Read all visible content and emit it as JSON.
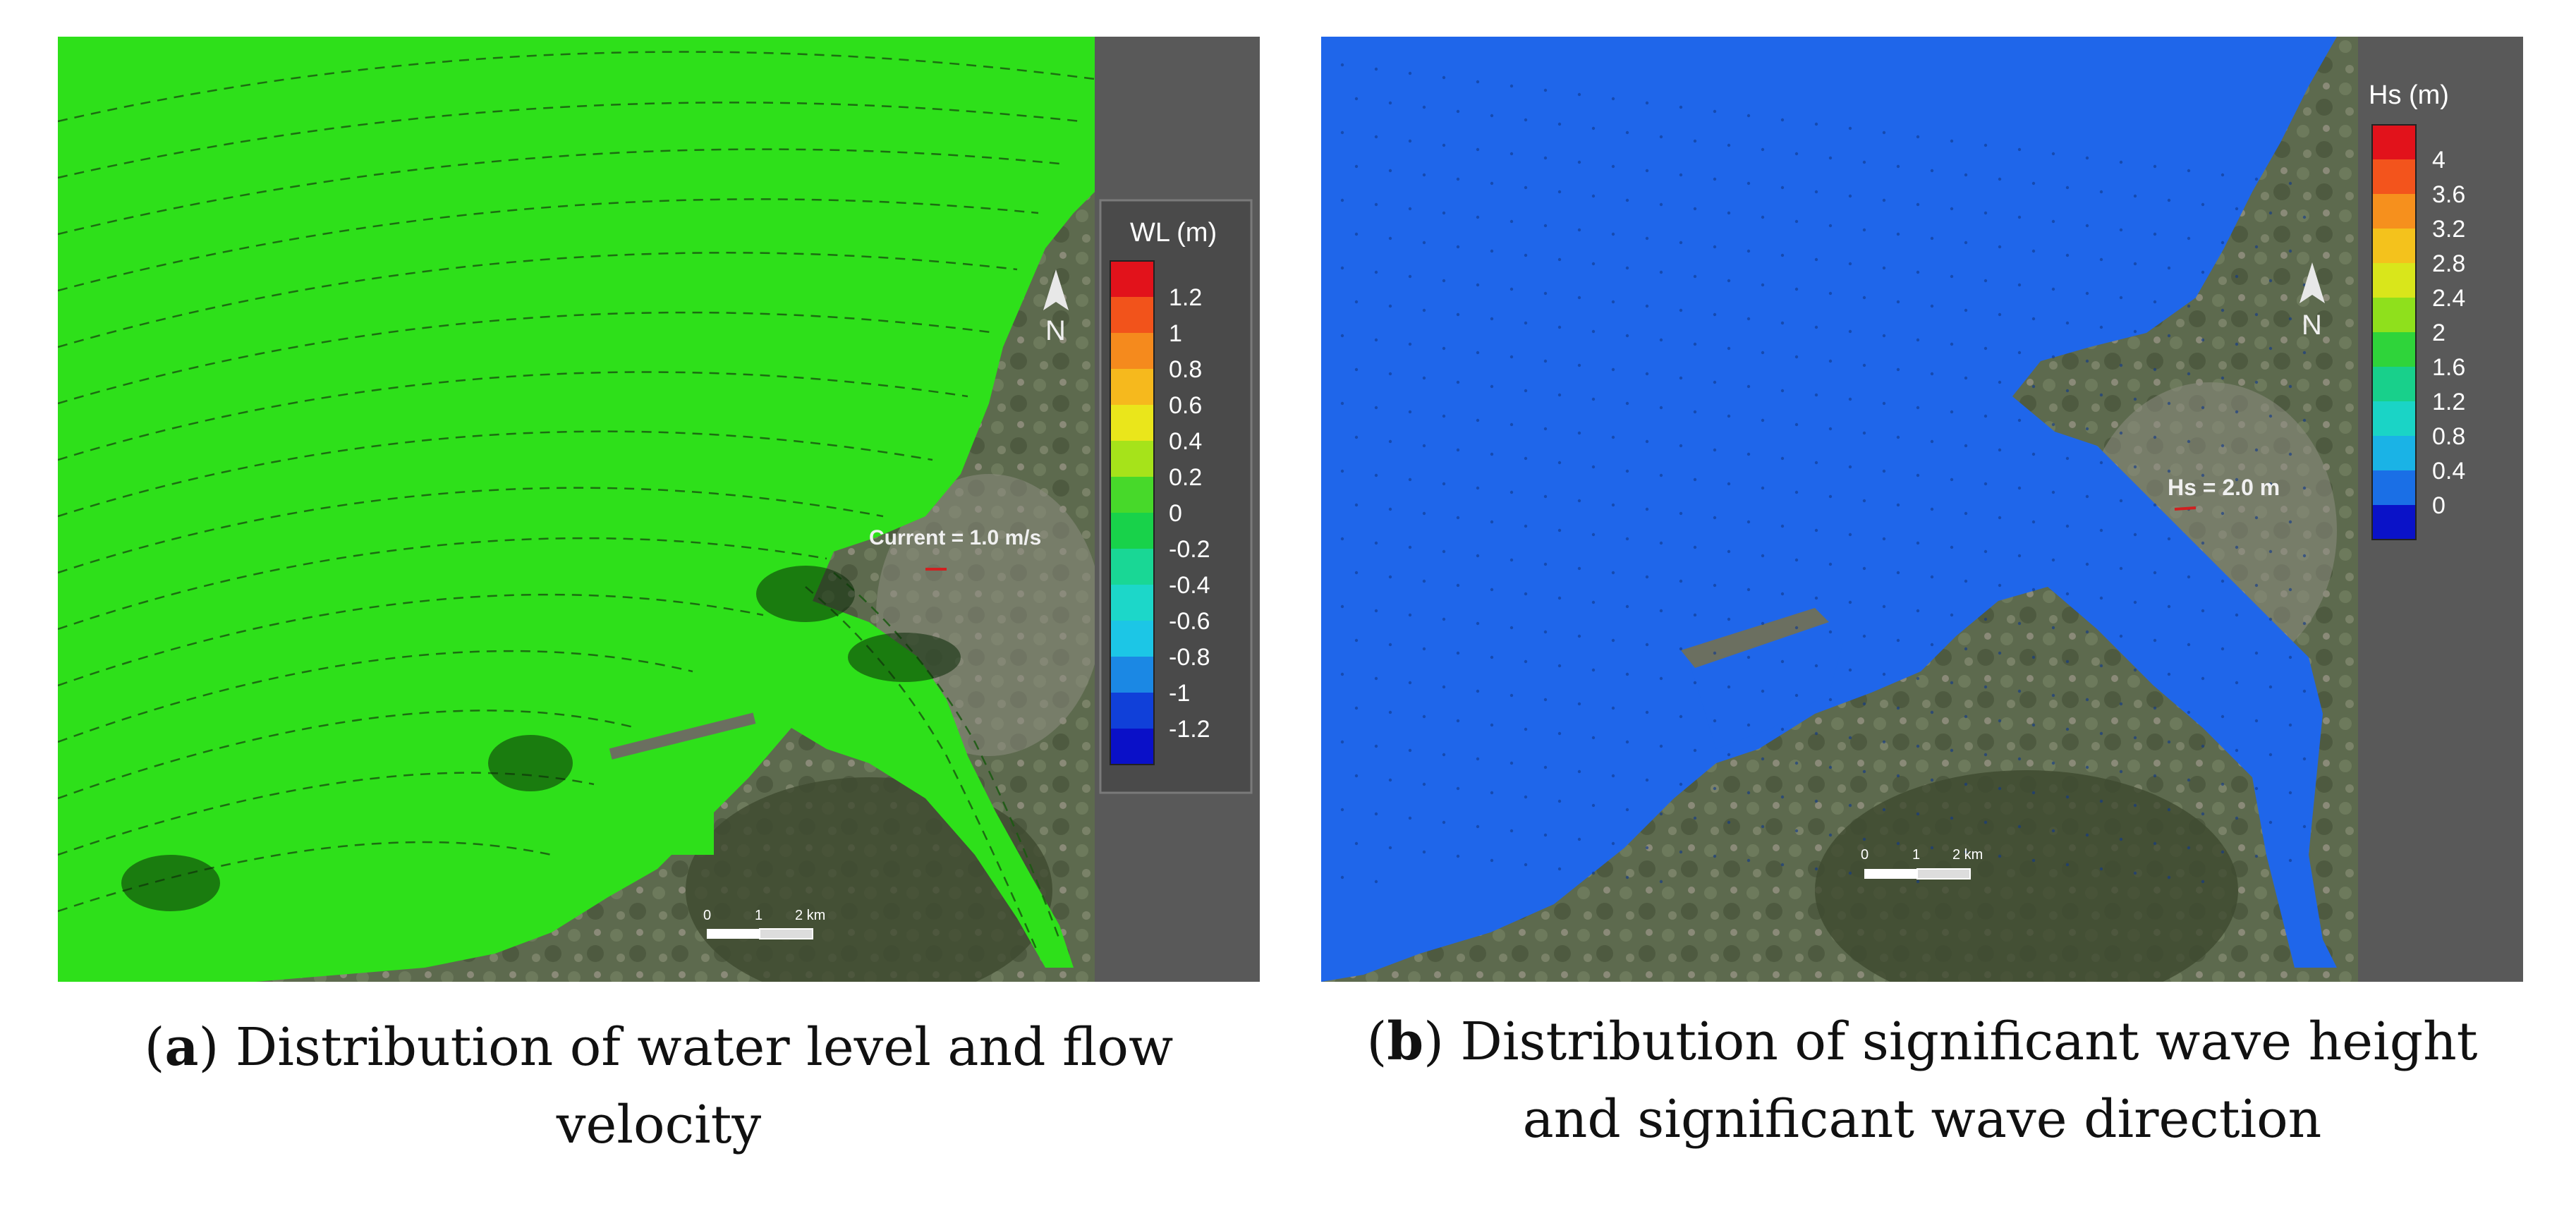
{
  "panel_a": {
    "legend_title": "WL (m)",
    "legend_ticks": [
      "1.2",
      "1",
      "0.8",
      "0.6",
      "0.4",
      "0.2",
      "0",
      "-0.2",
      "-0.4",
      "-0.6",
      "-0.8",
      "-1",
      "-1.2"
    ],
    "legend_colors": [
      "#e2121b",
      "#f2531b",
      "#f58a1d",
      "#f6b91d",
      "#eae61b",
      "#a6e31a",
      "#47d92a",
      "#18d24a",
      "#19d795",
      "#1cd7c9",
      "#1cc6e6",
      "#1b88e4",
      "#1040d9",
      "#0a10c8"
    ],
    "reference_vector_label": "Current = 1.0 m/s",
    "north_label": "N",
    "scale_bar_labels": [
      "0",
      "1",
      "2 km"
    ],
    "field_color": "#2ee01a",
    "caption_letter": "a",
    "caption_text_line1": ") Distribution of water level and flow",
    "caption_text_line2": "velocity"
  },
  "panel_b": {
    "legend_title": "Hs (m)",
    "legend_ticks": [
      "4",
      "3.6",
      "3.2",
      "2.8",
      "2.4",
      "2",
      "1.6",
      "1.2",
      "0.8",
      "0.4",
      "0"
    ],
    "legend_colors": [
      "#e2121b",
      "#f3541c",
      "#f6901d",
      "#f4c21c",
      "#d9e61b",
      "#8fe01c",
      "#2fd43a",
      "#18d08b",
      "#1ad4c6",
      "#1ab3e6",
      "#1a6fe6",
      "#0a12c8"
    ],
    "reference_vector_label": "Hs = 2.0 m",
    "north_label": "N",
    "scale_bar_labels": [
      "0",
      "1",
      "2 km"
    ],
    "field_color": "#1f66ea",
    "caption_letter": "b",
    "caption_text_line1": ") Distribution of significant wave height",
    "caption_text_line2": "and significant wave direction"
  }
}
